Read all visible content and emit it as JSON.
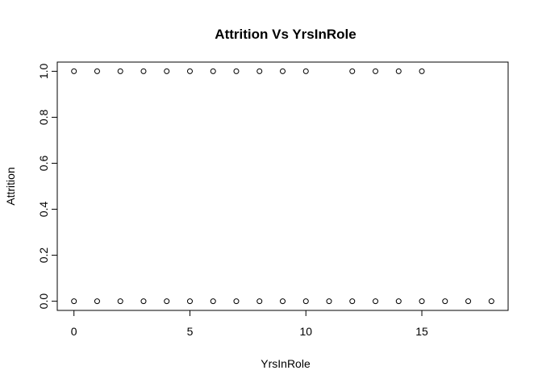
{
  "chart_data": {
    "type": "scatter",
    "title": "Attrition Vs YrsInRole",
    "xlabel": "YrsInRole",
    "ylabel": "Attrition",
    "xlim": [
      -0.72,
      18.72
    ],
    "ylim": [
      -0.04,
      1.04
    ],
    "x_ticks": [
      0,
      5,
      10,
      15
    ],
    "x_tick_labels": [
      "0",
      "5",
      "10",
      "15"
    ],
    "y_ticks": [
      0.0,
      0.2,
      0.4,
      0.6,
      0.8,
      1.0
    ],
    "y_tick_labels": [
      "0.0",
      "0.2",
      "0.4",
      "0.6",
      "0.8",
      "1.0"
    ],
    "grid": false,
    "legend": "none",
    "marker": "open-circle",
    "points": [
      {
        "x": 0,
        "y": 1
      },
      {
        "x": 1,
        "y": 1
      },
      {
        "x": 2,
        "y": 1
      },
      {
        "x": 3,
        "y": 1
      },
      {
        "x": 4,
        "y": 1
      },
      {
        "x": 5,
        "y": 1
      },
      {
        "x": 6,
        "y": 1
      },
      {
        "x": 7,
        "y": 1
      },
      {
        "x": 8,
        "y": 1
      },
      {
        "x": 9,
        "y": 1
      },
      {
        "x": 10,
        "y": 1
      },
      {
        "x": 12,
        "y": 1
      },
      {
        "x": 13,
        "y": 1
      },
      {
        "x": 14,
        "y": 1
      },
      {
        "x": 15,
        "y": 1
      },
      {
        "x": 0,
        "y": 0
      },
      {
        "x": 1,
        "y": 0
      },
      {
        "x": 2,
        "y": 0
      },
      {
        "x": 3,
        "y": 0
      },
      {
        "x": 4,
        "y": 0
      },
      {
        "x": 5,
        "y": 0
      },
      {
        "x": 6,
        "y": 0
      },
      {
        "x": 7,
        "y": 0
      },
      {
        "x": 8,
        "y": 0
      },
      {
        "x": 9,
        "y": 0
      },
      {
        "x": 10,
        "y": 0
      },
      {
        "x": 11,
        "y": 0
      },
      {
        "x": 12,
        "y": 0
      },
      {
        "x": 13,
        "y": 0
      },
      {
        "x": 14,
        "y": 0
      },
      {
        "x": 15,
        "y": 0
      },
      {
        "x": 16,
        "y": 0
      },
      {
        "x": 17,
        "y": 0
      },
      {
        "x": 18,
        "y": 0
      }
    ]
  }
}
